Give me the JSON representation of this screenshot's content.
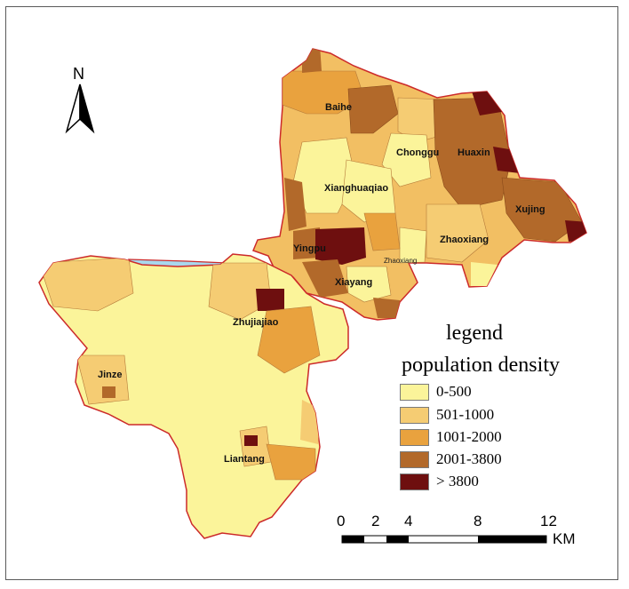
{
  "north_label": "N",
  "legend": {
    "title": "legend",
    "subtitle": "population density",
    "items": [
      {
        "label": "0-500",
        "color": "#fbf49a"
      },
      {
        "label": "501-1000",
        "color": "#f5cc73"
      },
      {
        "label": "1001-2000",
        "color": "#e9a23e"
      },
      {
        "label": "2001-3800",
        "color": "#b2692a"
      },
      {
        "label": "> 3800",
        "color": "#6e0f0f"
      }
    ]
  },
  "scale_bar": {
    "ticks": [
      "0",
      "2",
      "4",
      "8",
      "12"
    ],
    "unit": "KM"
  },
  "towns": {
    "baihe": "Baihe",
    "chonggu": "Chonggu",
    "huaxin": "Huaxin",
    "xianghuaqiao": "Xianghuaqiao",
    "xujing": "Xujing",
    "zhaoxiang": "Zhaoxiang",
    "yingpu": "Yingpu",
    "zhaoxiang_small": "Zhaoxiang",
    "xiayang": "Xiayang",
    "zhujiajiao": "Zhujiajiao",
    "jinze": "Jinze",
    "liantang": "Liantang"
  },
  "colors": {
    "lake": "#a8d8ee",
    "district_border": "#cc2a2a",
    "frame": "#5a5a5a"
  }
}
